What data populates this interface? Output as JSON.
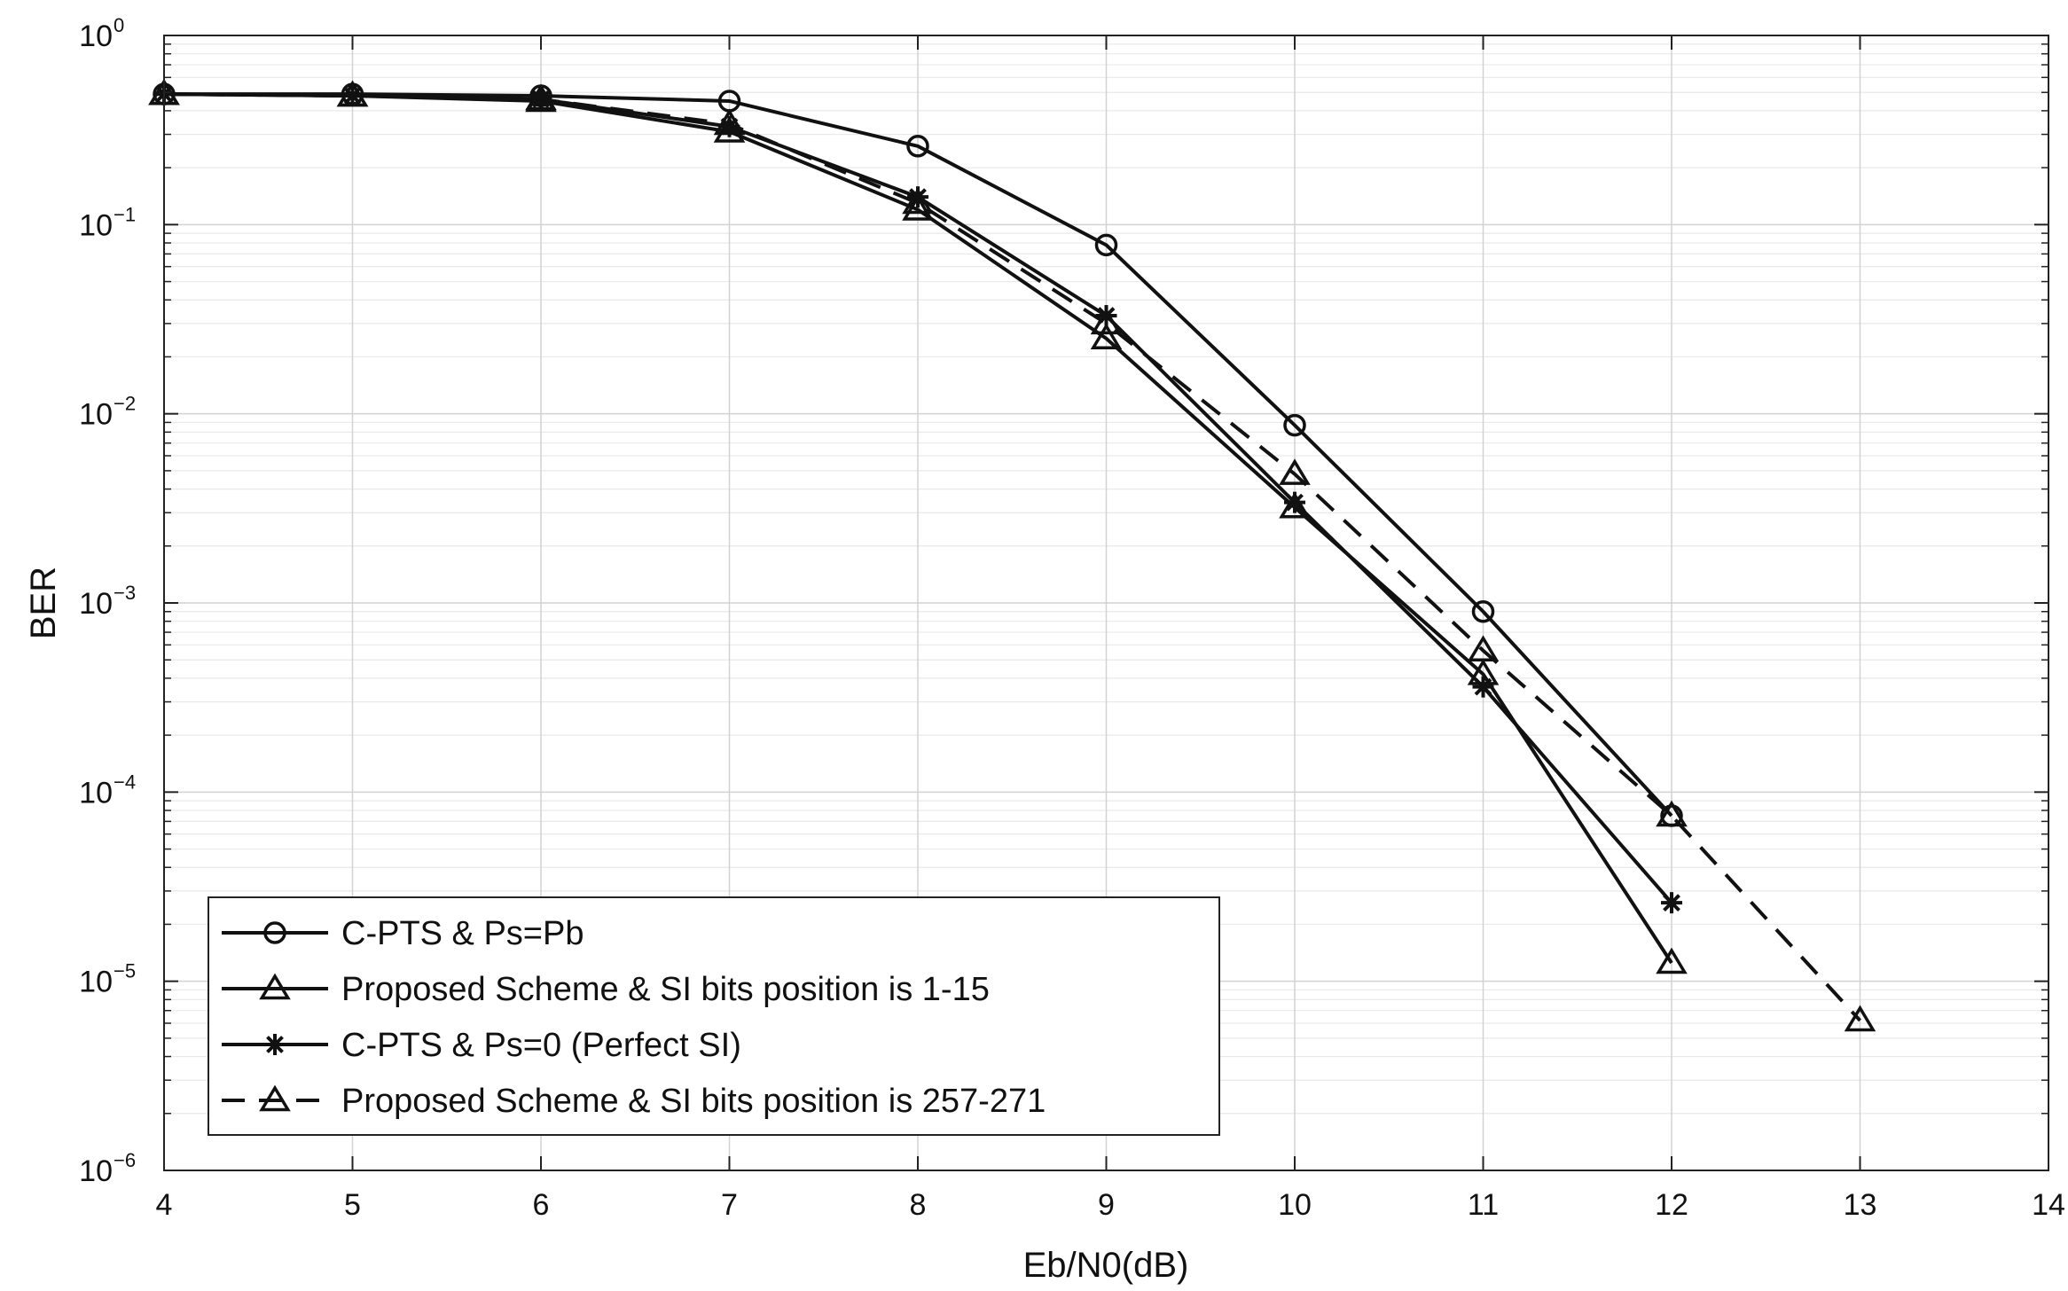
{
  "chart_data": {
    "type": "line",
    "title": "",
    "xlabel": "Eb/N0(dB)",
    "ylabel": "BER",
    "yscale": "log",
    "xlim": [
      4,
      14
    ],
    "ylim_exp": [
      -6,
      0
    ],
    "x_ticks": [
      "4",
      "5",
      "6",
      "7",
      "8",
      "9",
      "10",
      "11",
      "12",
      "13",
      "14"
    ],
    "y_ticks": [
      {
        "base": "10",
        "exp": "0"
      },
      {
        "base": "10",
        "exp": "−1"
      },
      {
        "base": "10",
        "exp": "−2"
      },
      {
        "base": "10",
        "exp": "−3"
      },
      {
        "base": "10",
        "exp": "−4"
      },
      {
        "base": "10",
        "exp": "−5"
      },
      {
        "base": "10",
        "exp": "−6"
      }
    ],
    "grid": true,
    "legend_position": "bottom-left",
    "series": [
      {
        "name": "C-PTS & Ps=Pb",
        "marker": "circle",
        "line": "solid",
        "x": [
          4,
          5,
          6,
          7,
          8,
          9,
          10,
          11,
          12
        ],
        "y": [
          0.49,
          0.49,
          0.48,
          0.45,
          0.26,
          0.078,
          0.0087,
          0.0009,
          7.5e-05
        ]
      },
      {
        "name": "Proposed Scheme & SI bits position is 1-15",
        "marker": "triangle",
        "line": "solid",
        "x": [
          4,
          5,
          6,
          7,
          8,
          9,
          10,
          11,
          12
        ],
        "y": [
          0.49,
          0.48,
          0.45,
          0.31,
          0.12,
          0.025,
          0.0032,
          0.00042,
          1.25e-05
        ]
      },
      {
        "name": "C-PTS & Ps=0 (Perfect SI)",
        "marker": "star",
        "line": "solid",
        "x": [
          4,
          5,
          6,
          7,
          8,
          9,
          10,
          11,
          12
        ],
        "y": [
          0.49,
          0.48,
          0.46,
          0.33,
          0.14,
          0.033,
          0.0034,
          0.00036,
          2.6e-05
        ]
      },
      {
        "name": "Proposed Scheme & SI bits position is 257-271",
        "marker": "triangle",
        "line": "dashed",
        "x": [
          4,
          5,
          6,
          7,
          8,
          9,
          10,
          11,
          12,
          13
        ],
        "y": [
          0.49,
          0.48,
          0.46,
          0.34,
          0.13,
          0.03,
          0.0048,
          0.00056,
          7.5e-05,
          6.2e-06
        ]
      }
    ]
  }
}
